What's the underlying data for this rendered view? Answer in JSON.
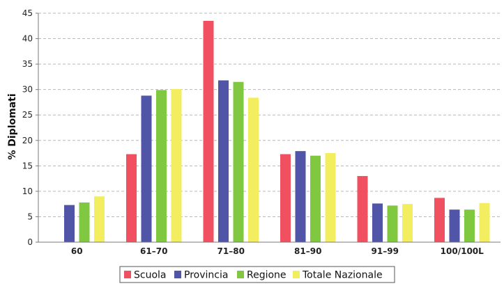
{
  "chart_data": {
    "type": "bar",
    "title": "",
    "xlabel": "",
    "ylabel": "% Diplomati",
    "ylim": [
      0,
      45
    ],
    "yticks": [
      0,
      5,
      10,
      15,
      20,
      25,
      30,
      35,
      40,
      45
    ],
    "grid": true,
    "legend_position": "bottom",
    "categories": [
      "60",
      "61-70",
      "71-80",
      "81-90",
      "91-99",
      "100/100L"
    ],
    "series": [
      {
        "name": "Scuola",
        "color": "#f05060",
        "values": [
          0,
          17.3,
          43.5,
          17.3,
          13.0,
          8.7
        ]
      },
      {
        "name": "Provincia",
        "color": "#5055a8",
        "values": [
          7.3,
          28.8,
          31.8,
          17.9,
          7.6,
          6.4
        ]
      },
      {
        "name": "Regione",
        "color": "#80c840",
        "values": [
          7.8,
          29.9,
          31.5,
          17.0,
          7.2,
          6.4
        ]
      },
      {
        "name": "Totale Nazionale",
        "color": "#f2ee60",
        "values": [
          9.0,
          30.1,
          28.4,
          17.5,
          7.5,
          7.7
        ]
      }
    ]
  }
}
